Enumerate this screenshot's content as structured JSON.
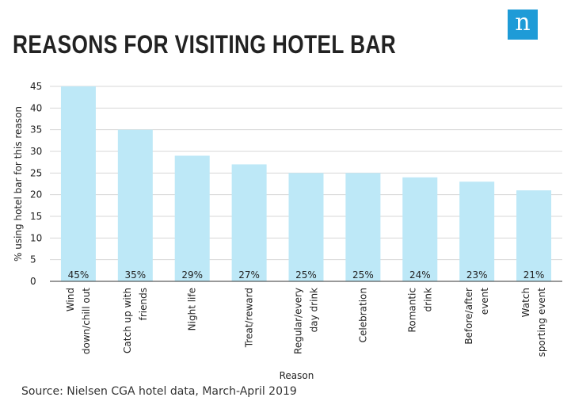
{
  "title": "REASONS FOR VISITING HOTEL BAR",
  "logo_letter": "n",
  "source": "Source: Nielsen CGA hotel data, March-April 2019",
  "colors": {
    "bar": "#bde8f7",
    "grid": "#d7d7d7",
    "logo": "#1e9bd7"
  },
  "chart_data": {
    "type": "bar",
    "title": "REASONS FOR VISITING HOTEL BAR",
    "xlabel": "Reason",
    "ylabel": "% using hotel bar for this reason",
    "ylim": [
      0,
      45
    ],
    "yticks": [
      0,
      5,
      10,
      15,
      20,
      25,
      30,
      35,
      40,
      45
    ],
    "grid": true,
    "categories": [
      [
        "Wind",
        "down/chill out"
      ],
      [
        "Catch up with",
        "friends"
      ],
      [
        "Night life"
      ],
      [
        "Treat/reward"
      ],
      [
        "Regular/every",
        "day drink"
      ],
      [
        "Celebration"
      ],
      [
        "Romantic",
        "drink"
      ],
      [
        "Before/after",
        "event"
      ],
      [
        "Watch",
        "sporting event"
      ]
    ],
    "values": [
      45,
      35,
      29,
      27,
      25,
      25,
      24,
      23,
      21
    ],
    "data_labels": [
      "45%",
      "35%",
      "29%",
      "27%",
      "25%",
      "25%",
      "24%",
      "23%",
      "21%"
    ]
  }
}
